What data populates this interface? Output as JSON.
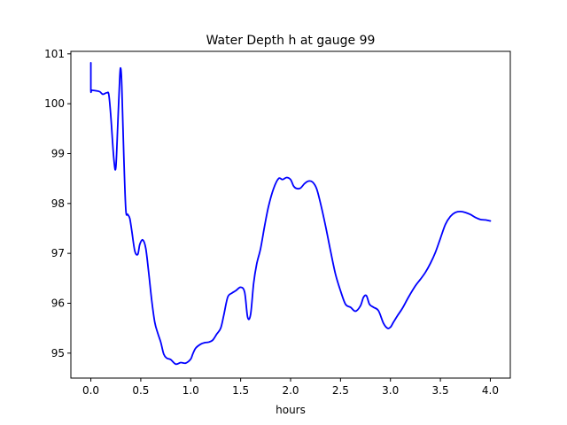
{
  "chart_data": {
    "type": "line",
    "title": "Water Depth h at gauge 99",
    "xlabel": "hours",
    "ylabel": "",
    "xlim": [
      -0.2,
      4.2
    ],
    "ylim": [
      94.5,
      101.05
    ],
    "xticks": [
      0.0,
      0.5,
      1.0,
      1.5,
      2.0,
      2.5,
      3.0,
      3.5,
      4.0
    ],
    "xtick_labels": [
      "0.0",
      "0.5",
      "1.0",
      "1.5",
      "2.0",
      "2.5",
      "3.0",
      "3.5",
      "4.0"
    ],
    "yticks": [
      95,
      96,
      97,
      98,
      99,
      100,
      101
    ],
    "ytick_labels": [
      "95",
      "96",
      "97",
      "98",
      "99",
      "100",
      "101"
    ],
    "grid": false,
    "legend": false,
    "series": [
      {
        "color": "#0000ff",
        "x": [
          0.0,
          0.0,
          0.01,
          0.05,
          0.09,
          0.12,
          0.16,
          0.18,
          0.2,
          0.23,
          0.25,
          0.27,
          0.29,
          0.3,
          0.31,
          0.33,
          0.35,
          0.37,
          0.39,
          0.41,
          0.44,
          0.47,
          0.49,
          0.52,
          0.55,
          0.58,
          0.61,
          0.64,
          0.67,
          0.7,
          0.73,
          0.76,
          0.8,
          0.85,
          0.9,
          0.95,
          1.0,
          1.02,
          1.05,
          1.1,
          1.14,
          1.18,
          1.22,
          1.26,
          1.3,
          1.33,
          1.37,
          1.41,
          1.45,
          1.5,
          1.54,
          1.57,
          1.6,
          1.63,
          1.66,
          1.7,
          1.74,
          1.78,
          1.83,
          1.88,
          1.92,
          1.96,
          2.0,
          2.03,
          2.06,
          2.1,
          2.14,
          2.18,
          2.22,
          2.26,
          2.3,
          2.35,
          2.4,
          2.45,
          2.5,
          2.55,
          2.6,
          2.65,
          2.7,
          2.73,
          2.76,
          2.79,
          2.83,
          2.88,
          2.93,
          2.97,
          3.0,
          3.03,
          3.07,
          3.12,
          3.18,
          3.25,
          3.3,
          3.35,
          3.4,
          3.45,
          3.5,
          3.55,
          3.6,
          3.65,
          3.7,
          3.75,
          3.8,
          3.85,
          3.9,
          3.95,
          4.0
        ],
        "y": [
          100.82,
          100.27,
          100.27,
          100.26,
          100.24,
          100.19,
          100.22,
          100.18,
          99.75,
          98.9,
          98.72,
          99.6,
          100.55,
          100.7,
          100.35,
          98.95,
          97.88,
          97.78,
          97.7,
          97.45,
          97.05,
          96.98,
          97.18,
          97.27,
          97.1,
          96.6,
          96.05,
          95.62,
          95.4,
          95.22,
          94.98,
          94.9,
          94.87,
          94.78,
          94.81,
          94.8,
          94.88,
          94.98,
          95.1,
          95.18,
          95.21,
          95.22,
          95.26,
          95.38,
          95.5,
          95.75,
          96.12,
          96.2,
          96.25,
          96.32,
          96.22,
          95.72,
          95.78,
          96.4,
          96.78,
          97.1,
          97.55,
          97.95,
          98.3,
          98.5,
          98.48,
          98.52,
          98.48,
          98.35,
          98.3,
          98.31,
          98.4,
          98.45,
          98.43,
          98.3,
          98.0,
          97.55,
          97.05,
          96.58,
          96.25,
          95.98,
          95.92,
          95.84,
          95.95,
          96.12,
          96.15,
          95.98,
          95.92,
          95.85,
          95.6,
          95.5,
          95.52,
          95.62,
          95.75,
          95.9,
          96.12,
          96.35,
          96.48,
          96.62,
          96.8,
          97.02,
          97.3,
          97.58,
          97.74,
          97.82,
          97.84,
          97.82,
          97.78,
          97.72,
          97.68,
          97.67,
          97.65
        ]
      }
    ]
  }
}
